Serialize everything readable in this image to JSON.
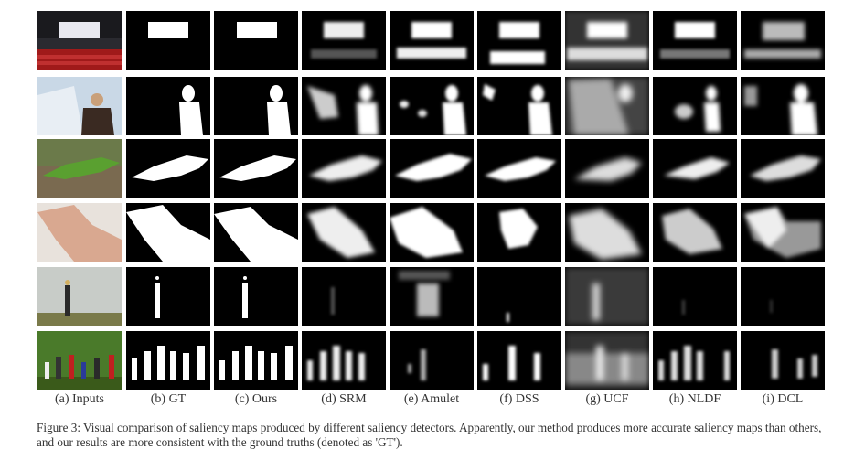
{
  "figure": {
    "columns": [
      {
        "label": "(a) Inputs"
      },
      {
        "label": "(b) GT"
      },
      {
        "label": "(c) Ours"
      },
      {
        "label": "(d) SRM"
      },
      {
        "label": "(e) Amulet"
      },
      {
        "label": "(f) DSS"
      },
      {
        "label": "(g) UCF"
      },
      {
        "label": "(h) NLDF"
      },
      {
        "label": "(i) DCL"
      }
    ],
    "caption": "Figure 3: Visual comparison of saliency maps produced by different saliency detectors. Apparently, our method produces more accurate saliency maps than others, and our results are more consistent with the ground truths (denoted as 'GT')."
  }
}
